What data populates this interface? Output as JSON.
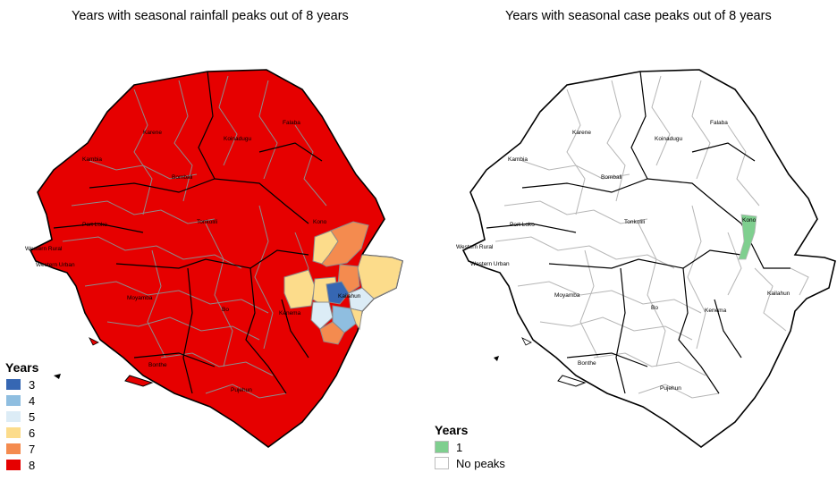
{
  "left_panel": {
    "title": "Years with seasonal rainfall peaks out of 8 years",
    "legend_title": "Years",
    "legend": [
      {
        "label": "3",
        "color": "#3667b3"
      },
      {
        "label": "4",
        "color": "#8fbee0"
      },
      {
        "label": "5",
        "color": "#dcecf6"
      },
      {
        "label": "6",
        "color": "#fcdc8b"
      },
      {
        "label": "7",
        "color": "#f48b4f"
      },
      {
        "label": "8",
        "color": "#e60000"
      }
    ],
    "district_labels": [
      "Falaba",
      "Karene",
      "Koinadugu",
      "Kambia",
      "Bombali",
      "Port Loko",
      "Tonkolili",
      "Kono",
      "Western Rural",
      "Western Urban",
      "Kailahun",
      "Moyamba",
      "Bo",
      "Kenema",
      "Bonthe",
      "Pujehun"
    ]
  },
  "right_panel": {
    "title": "Years with seasonal case peaks out of 8 years",
    "legend_title": "Years",
    "legend": [
      {
        "label": "1",
        "color": "#7fcf8f"
      },
      {
        "label": "No peaks",
        "color": "#ffffff"
      }
    ],
    "district_labels": [
      "Falaba",
      "Karene",
      "Koinadugu",
      "Kambia",
      "Bombali",
      "Port Loko",
      "Tonkolili",
      "Kono",
      "Western Rural",
      "Western Urban",
      "Kailahun",
      "Moyamba",
      "Bo",
      "Kenema",
      "Bonthe",
      "Pujehun"
    ]
  }
}
